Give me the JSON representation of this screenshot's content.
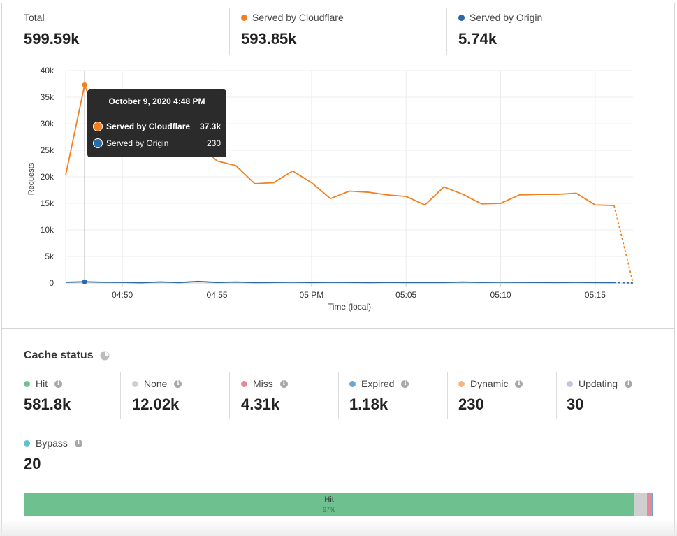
{
  "summary": {
    "total": {
      "label": "Total",
      "value": "599.59k"
    },
    "cloudflare": {
      "label": "Served by Cloudflare",
      "value": "593.85k",
      "color": "#f38020"
    },
    "origin": {
      "label": "Served by Origin",
      "value": "5.74k",
      "color": "#2c6aa7"
    }
  },
  "tooltip": {
    "title": "October 9, 2020 4:48 PM",
    "rows": [
      {
        "name": "Served by Cloudflare",
        "value": "37.3k"
      },
      {
        "name": "Served by Origin",
        "value": "230"
      }
    ]
  },
  "chart_data": {
    "type": "line",
    "xlabel": "Time (local)",
    "ylabel": "Requests",
    "ylim": [
      0,
      40000
    ],
    "xlim": [
      "04:47",
      "05:17"
    ],
    "yticks": [
      "0",
      "5k",
      "10k",
      "15k",
      "20k",
      "25k",
      "30k",
      "35k",
      "40k"
    ],
    "xticks": [
      {
        "t": "04:50",
        "label": "04:50"
      },
      {
        "t": "04:55",
        "label": "04:55"
      },
      {
        "t": "05:00",
        "label": "05 PM"
      },
      {
        "t": "05:05",
        "label": "05:05"
      },
      {
        "t": "05:10",
        "label": "05:10"
      },
      {
        "t": "05:15",
        "label": "05:15"
      }
    ],
    "grid": true,
    "legend": "none",
    "x": [
      "04:47",
      "04:48",
      "04:49",
      "04:50",
      "04:51",
      "04:52",
      "04:53",
      "04:54",
      "04:55",
      "04:56",
      "04:57",
      "04:58",
      "04:59",
      "05:00",
      "05:01",
      "05:02",
      "05:03",
      "05:04",
      "05:05",
      "05:06",
      "05:07",
      "05:08",
      "05:09",
      "05:10",
      "05:11",
      "05:12",
      "05:13",
      "05:14",
      "05:15",
      "05:16",
      "05:17"
    ],
    "series": [
      {
        "name": "Served by Cloudflare",
        "color": "#f38020",
        "values": [
          20300,
          37300,
          28000,
          26300,
          24400,
          23900,
          23900,
          26200,
          23000,
          22100,
          18700,
          18900,
          21100,
          18900,
          15900,
          17300,
          17100,
          16600,
          16300,
          14700,
          18100,
          16700,
          14900,
          15000,
          16600,
          16700,
          16700,
          16900,
          14700,
          14600,
          0
        ],
        "incomplete_last": true
      },
      {
        "name": "Served by Origin",
        "color": "#2c6aa7",
        "values": [
          150,
          230,
          150,
          130,
          60,
          200,
          90,
          300,
          110,
          180,
          90,
          120,
          150,
          110,
          140,
          120,
          90,
          140,
          110,
          100,
          100,
          180,
          120,
          150,
          130,
          120,
          100,
          140,
          110,
          90,
          0
        ],
        "incomplete_last": true
      }
    ],
    "highlight_x": "04:48"
  },
  "cache_status": {
    "title": "Cache status",
    "items": [
      {
        "label": "Hit",
        "value": "581.8k",
        "color": "#6fc08f"
      },
      {
        "label": "None",
        "value": "12.02k",
        "color": "#cfcfcf"
      },
      {
        "label": "Miss",
        "value": "4.31k",
        "color": "#e58898"
      },
      {
        "label": "Expired",
        "value": "1.18k",
        "color": "#6aa7d6"
      },
      {
        "label": "Dynamic",
        "value": "230",
        "color": "#f3b784"
      },
      {
        "label": "Updating",
        "value": "30",
        "color": "#bfc6e2"
      },
      {
        "label": "Bypass",
        "value": "20",
        "color": "#5ec0d2"
      }
    ],
    "bar": [
      {
        "label": "Hit",
        "pct": "97%",
        "fraction": 0.9703,
        "color": "#6fc08f"
      },
      {
        "label": "None",
        "fraction": 0.02,
        "color": "#cfcfcf"
      },
      {
        "label": "Miss",
        "fraction": 0.0072,
        "color": "#e58898"
      },
      {
        "label": "Expired",
        "fraction": 0.002,
        "color": "#6aa7d6"
      }
    ]
  }
}
